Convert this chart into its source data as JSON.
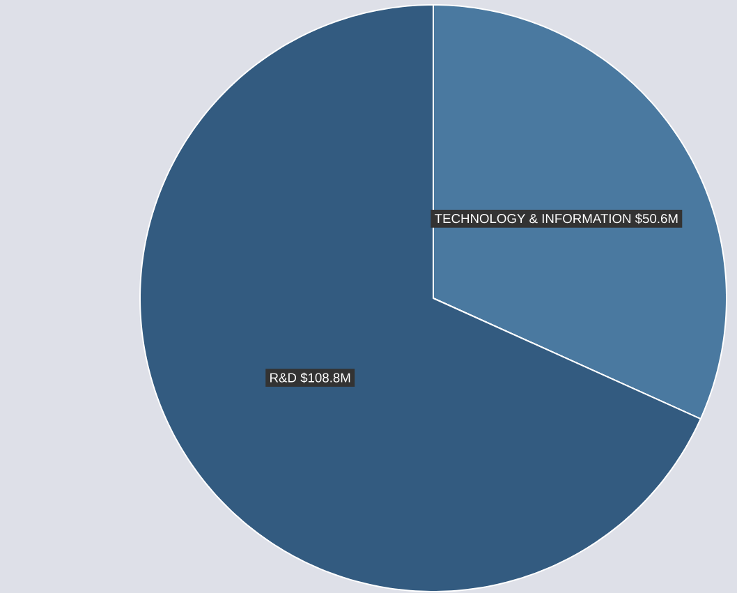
{
  "chart_data": {
    "type": "pie",
    "categories": [
      "TECHNOLOGY & INFORMATION",
      "R&D"
    ],
    "values": [
      50.6,
      108.8
    ],
    "colors": [
      "#4a79a0",
      "#335b80"
    ],
    "value_labels": [
      "$50.6M",
      "$108.8M"
    ]
  }
}
